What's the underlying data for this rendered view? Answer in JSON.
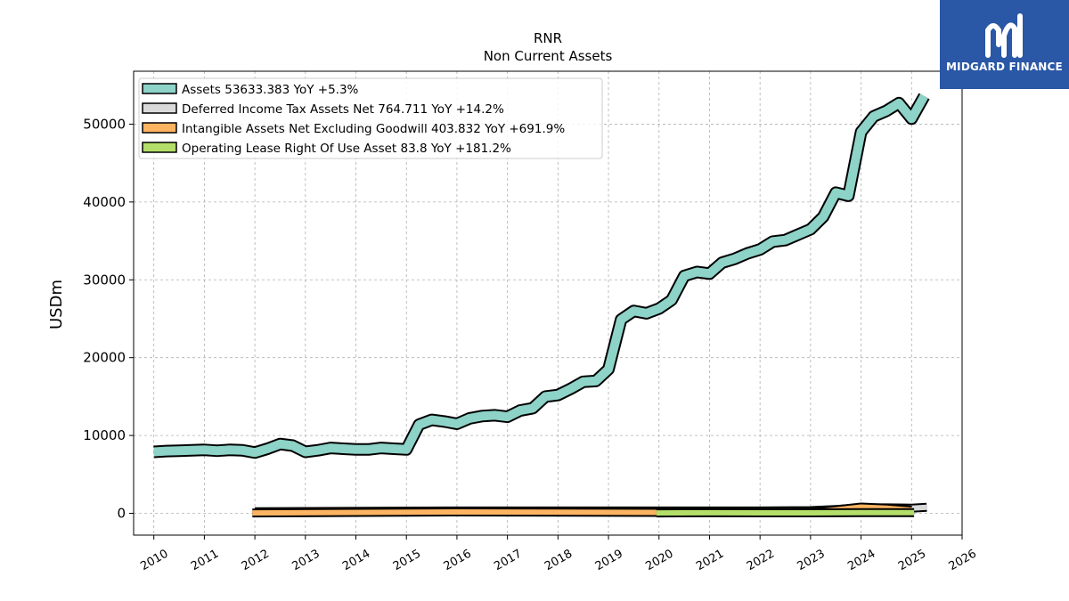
{
  "logo": {
    "text": "MIDGARD FINANCE",
    "color": "#2a57a6"
  },
  "chart_data": {
    "type": "area",
    "title": "RNR",
    "subtitle": "Non Current  Assets",
    "ylabel": "USDm",
    "xlabel": "",
    "xlim": [
      2009.6,
      2026.0
    ],
    "ylim": [
      -2800,
      56800
    ],
    "x_ticks": [
      2010,
      2011,
      2012,
      2013,
      2014,
      2015,
      2016,
      2017,
      2018,
      2019,
      2020,
      2021,
      2022,
      2023,
      2024,
      2025,
      2026
    ],
    "y_ticks": [
      0,
      10000,
      20000,
      30000,
      40000,
      50000
    ],
    "grid": true,
    "legend_position": "top-left",
    "series": [
      {
        "name": "Assets",
        "legend": "Assets  53633.383 YoY +5.3%",
        "color": "#8dd3c7",
        "x": [
          2010.0,
          2010.25,
          2010.5,
          2010.75,
          2011.0,
          2011.25,
          2011.5,
          2011.75,
          2012.0,
          2012.25,
          2012.5,
          2012.75,
          2013.0,
          2013.25,
          2013.5,
          2013.75,
          2014.0,
          2014.25,
          2014.5,
          2014.75,
          2015.0,
          2015.25,
          2015.5,
          2015.75,
          2016.0,
          2016.25,
          2016.5,
          2016.75,
          2017.0,
          2017.25,
          2017.5,
          2017.75,
          2018.0,
          2018.25,
          2018.5,
          2018.75,
          2019.0,
          2019.25,
          2019.5,
          2019.75,
          2020.0,
          2020.25,
          2020.5,
          2020.75,
          2021.0,
          2021.25,
          2021.5,
          2021.75,
          2022.0,
          2022.25,
          2022.5,
          2022.75,
          2023.0,
          2023.25,
          2023.5,
          2023.75,
          2024.0,
          2024.25,
          2024.5,
          2024.75,
          2025.0,
          2025.25
        ],
        "values": [
          7900,
          8000,
          8050,
          8100,
          8150,
          8050,
          8150,
          8100,
          7800,
          8300,
          8900,
          8700,
          7900,
          8100,
          8400,
          8300,
          8200,
          8200,
          8400,
          8300,
          8200,
          11400,
          12000,
          11800,
          11500,
          12200,
          12500,
          12600,
          12400,
          13200,
          13500,
          15000,
          15200,
          16000,
          16900,
          17000,
          18500,
          24900,
          26000,
          25700,
          26300,
          27400,
          30500,
          31000,
          30800,
          32200,
          32700,
          33400,
          33900,
          34900,
          35100,
          35800,
          36500,
          38100,
          41200,
          40800,
          49000,
          51000,
          51700,
          52700,
          50700,
          53600
        ]
      },
      {
        "name": "Deferred Income Tax Assets Net",
        "legend": "Deferred Income Tax Assets Net  764.711 YoY +14.2%",
        "color": "#d9d9d9",
        "x": [
          2012.0,
          2016.0,
          2020.0,
          2022.0,
          2023.0,
          2023.5,
          2024.0,
          2024.5,
          2025.0,
          2025.3
        ],
        "values": [
          200,
          300,
          300,
          300,
          350,
          500,
          700,
          700,
          670,
          765
        ]
      },
      {
        "name": "Intangible Assets Net Excluding Goodwill",
        "legend": "Intangible Assets Net Excluding Goodwill  403.832 YoY +691.9%",
        "color": "#fdb462",
        "x": [
          2011.95,
          2016.0,
          2020.0,
          2022.0,
          2023.0,
          2023.5,
          2024.0,
          2024.5,
          2025.0
        ],
        "values": [
          50,
          180,
          120,
          80,
          100,
          450,
          800,
          650,
          404
        ]
      },
      {
        "name": "Operating Lease Right Of Use Asset",
        "legend": "Operating Lease Right Of Use Asset  83.8 YoY +181.2%",
        "color": "#b3de69",
        "x": [
          2019.95,
          2021.0,
          2022.0,
          2023.0,
          2024.0,
          2025.05
        ],
        "values": [
          50,
          70,
          60,
          60,
          80,
          84
        ]
      }
    ]
  }
}
